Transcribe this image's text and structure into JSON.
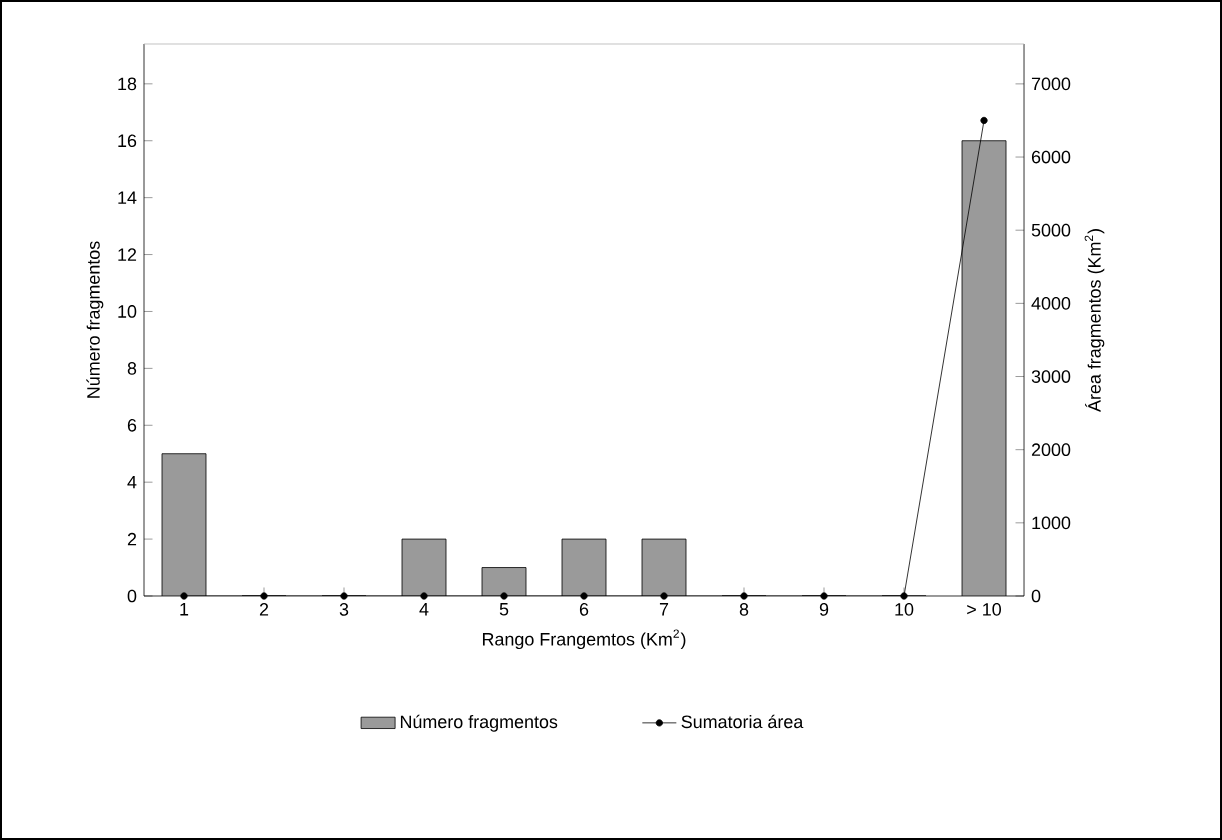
{
  "chart_data": {
    "type": "bar",
    "xlabel": "Rango Frangemtos (Km$^{2}$)",
    "ylabel": "Número fragmentos",
    "y2label": "Área fragmentos (Km$^{2}$)",
    "categories": [
      "1",
      "2",
      "3",
      "4",
      "5",
      "6",
      "7",
      "8",
      "9",
      "10",
      "> 10"
    ],
    "series": [
      {
        "name": "Número fragmentos",
        "type": "bar",
        "color": "#9a9a9a",
        "values": [
          5,
          0,
          0,
          2,
          1,
          2,
          2,
          0,
          0,
          0,
          16
        ]
      },
      {
        "name": "Sumatoria área",
        "type": "line",
        "axis": "y2",
        "color": "#000000",
        "marker": "circle",
        "line_style": "solid",
        "values": [
          0,
          0,
          0,
          0,
          0,
          0,
          0,
          0,
          0,
          0,
          6500
        ]
      }
    ],
    "ylim": [
      0,
      19.4
    ],
    "yticks": [
      0,
      2,
      4,
      6,
      8,
      10,
      12,
      14,
      16,
      18
    ],
    "y2lim": [
      0,
      7545
    ],
    "y2ticks": [
      0,
      1000,
      2000,
      3000,
      4000,
      5000,
      6000,
      7000
    ],
    "legend": "bottom"
  }
}
